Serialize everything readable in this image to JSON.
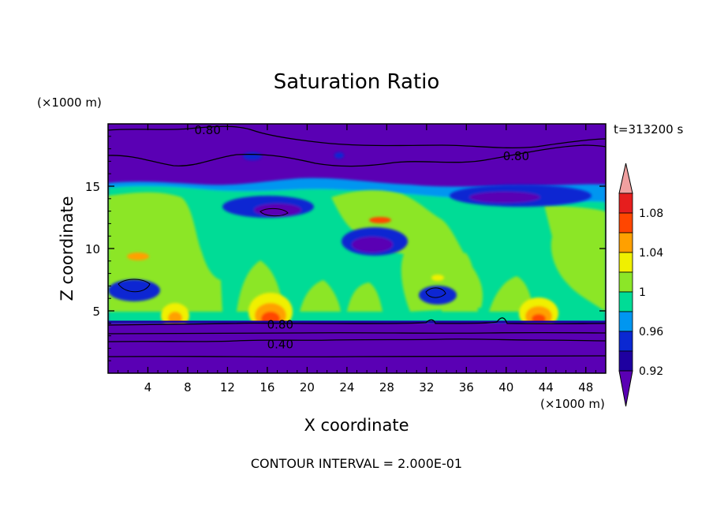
{
  "chart_data": {
    "type": "heatmap",
    "title": "Saturation Ratio",
    "xlabel": "X coordinate",
    "ylabel": "Z coordinate",
    "x_unit": "(×1000 m)",
    "y_unit": "(×1000 m)",
    "time_label": "t=313200 s",
    "footer": "CONTOUR INTERVAL = 2.000E-01",
    "xlim": [
      0,
      50
    ],
    "ylim": [
      0,
      20
    ],
    "x_ticks": [
      "4",
      "8",
      "12",
      "16",
      "20",
      "24",
      "28",
      "32",
      "36",
      "40",
      "44",
      "48"
    ],
    "y_ticks": [
      "5",
      "10",
      "15"
    ],
    "colorbar": {
      "levels": [
        0.92,
        0.94,
        0.96,
        0.98,
        1.0,
        1.02,
        1.04,
        1.06,
        1.08,
        1.1
      ],
      "labels": [
        "0.92",
        "0.96",
        "1",
        "1.04",
        "1.08"
      ],
      "colors": [
        "#5a00b4",
        "#1e00a0",
        "#0a28d2",
        "#0096f0",
        "#00dc96",
        "#8ce628",
        "#f0f000",
        "#ffa000",
        "#ff4600",
        "#e61e1e",
        "#f0a0a0"
      ],
      "extend": "both"
    },
    "contour_labels": [
      {
        "text": "0.80",
        "x": 10.0,
        "z": 19.5
      },
      {
        "text": "0.80",
        "x": 41.0,
        "z": 17.4
      },
      {
        "text": "0.80",
        "x": 17.3,
        "z": 3.9
      },
      {
        "text": "0.40",
        "x": 17.3,
        "z": 2.3
      }
    ]
  }
}
